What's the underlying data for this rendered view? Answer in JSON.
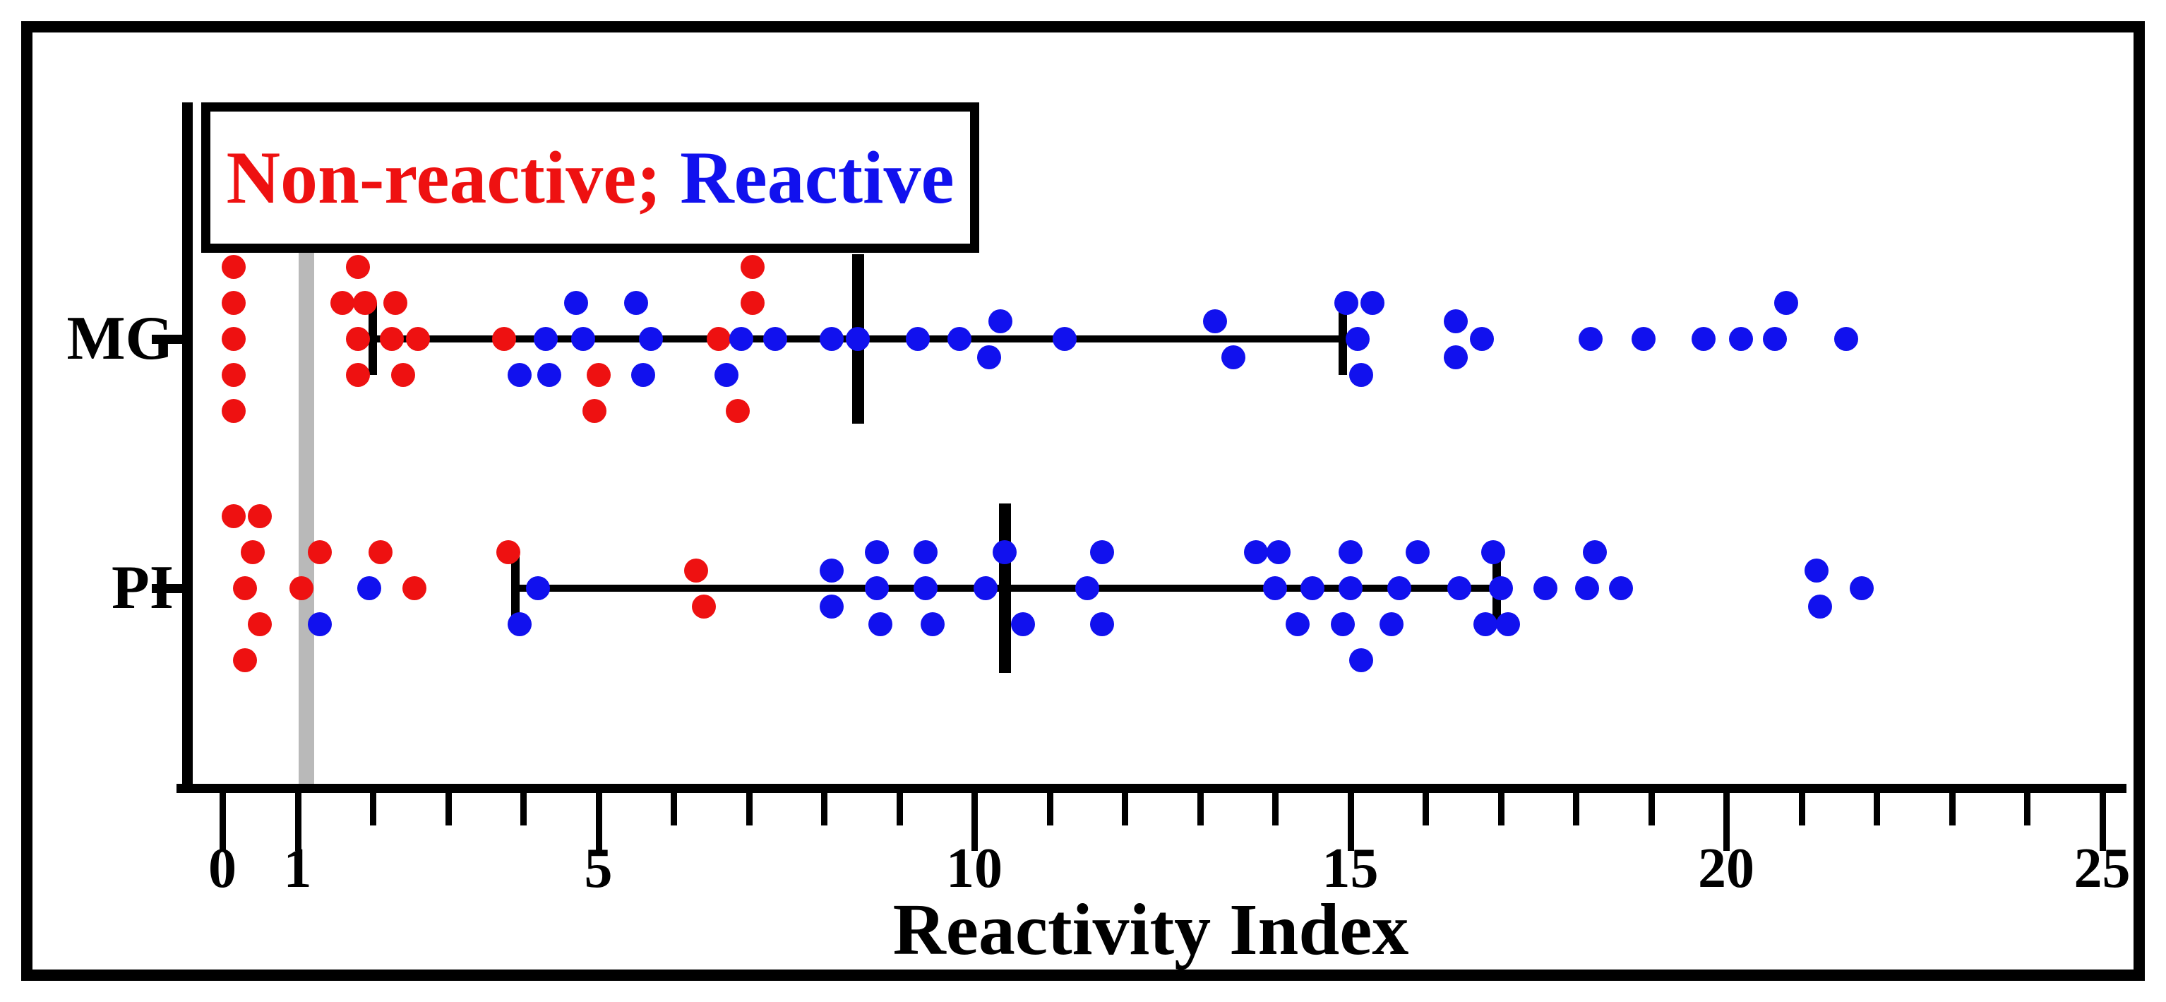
{
  "chart_data": {
    "type": "scatter",
    "variant": "categorical-dot-plot-beeswarm",
    "xlabel": "Reactivity Index",
    "categories": [
      "MG",
      "PI"
    ],
    "xlim": [
      0,
      25
    ],
    "x_ticks_labeled": [
      0,
      1,
      5,
      10,
      15,
      20,
      25
    ],
    "x_minor_tick_step": 1,
    "cutoff_line_x": 1,
    "grid": false,
    "legend": {
      "position": "top-left",
      "items": [
        {
          "label": "Non-reactive;",
          "color": "#ee1111"
        },
        {
          "label": "Reactive",
          "color": "#1111ee"
        }
      ]
    },
    "colors": {
      "non_reactive": "#ee1111",
      "reactive": "#1111ee",
      "cutoff_line": "#b9b9b9",
      "axis": "#000000"
    },
    "summary_stats": [
      {
        "category": "MG",
        "whisker_min": 2.0,
        "median": 8.45,
        "whisker_max": 14.9
      },
      {
        "category": "PI",
        "whisker_min": 3.9,
        "median": 10.4,
        "whisker_max": 16.95
      }
    ],
    "series": [
      {
        "category": "MG",
        "name": "Non-reactive",
        "color": "#ee1111",
        "points": [
          [
            0.15,
            -2
          ],
          [
            0.15,
            -1
          ],
          [
            0.15,
            0
          ],
          [
            0.15,
            1
          ],
          [
            0.15,
            2
          ],
          [
            1.8,
            -2
          ],
          [
            1.6,
            -1
          ],
          [
            1.9,
            -1
          ],
          [
            2.3,
            -1
          ],
          [
            1.8,
            0
          ],
          [
            2.25,
            0
          ],
          [
            2.6,
            0
          ],
          [
            1.8,
            1
          ],
          [
            2.4,
            1
          ],
          [
            3.75,
            0
          ],
          [
            5.0,
            1
          ],
          [
            4.95,
            2
          ],
          [
            6.6,
            0
          ],
          [
            7.05,
            -2
          ],
          [
            7.05,
            -1
          ],
          [
            6.85,
            2
          ]
        ]
      },
      {
        "category": "MG",
        "name": "Reactive",
        "color": "#1111ee",
        "points": [
          [
            4.3,
            0
          ],
          [
            3.95,
            1
          ],
          [
            4.35,
            1
          ],
          [
            4.7,
            -1
          ],
          [
            5.5,
            -1
          ],
          [
            4.8,
            0
          ],
          [
            5.7,
            0
          ],
          [
            5.6,
            1
          ],
          [
            6.7,
            1
          ],
          [
            6.9,
            0
          ],
          [
            7.35,
            0
          ],
          [
            8.1,
            0
          ],
          [
            8.45,
            0
          ],
          [
            9.25,
            0
          ],
          [
            9.8,
            0
          ],
          [
            10.35,
            -0.5
          ],
          [
            10.2,
            0.5
          ],
          [
            11.2,
            0
          ],
          [
            13.2,
            -0.5
          ],
          [
            13.45,
            0.5
          ],
          [
            14.95,
            -1
          ],
          [
            15.3,
            -1
          ],
          [
            15.1,
            0
          ],
          [
            15.15,
            1
          ],
          [
            16.4,
            -0.5
          ],
          [
            16.75,
            0
          ],
          [
            16.4,
            0.5
          ],
          [
            18.2,
            0
          ],
          [
            18.9,
            0
          ],
          [
            19.7,
            0
          ],
          [
            20.2,
            0
          ],
          [
            20.65,
            0
          ],
          [
            20.8,
            -1
          ],
          [
            21.6,
            0
          ]
        ]
      },
      {
        "category": "PI",
        "name": "Non-reactive",
        "color": "#ee1111",
        "points": [
          [
            0.15,
            -2
          ],
          [
            0.5,
            -2
          ],
          [
            0.4,
            -1
          ],
          [
            0.3,
            0
          ],
          [
            0.5,
            1
          ],
          [
            0.3,
            2
          ],
          [
            1.3,
            -1
          ],
          [
            1.05,
            0
          ],
          [
            2.1,
            -1
          ],
          [
            2.55,
            0
          ],
          [
            3.8,
            -1
          ],
          [
            6.3,
            -0.5
          ],
          [
            6.4,
            0.5
          ]
        ]
      },
      {
        "category": "PI",
        "name": "Reactive",
        "color": "#1111ee",
        "points": [
          [
            1.3,
            1
          ],
          [
            1.95,
            0
          ],
          [
            3.95,
            1
          ],
          [
            4.2,
            0
          ],
          [
            8.1,
            -0.5
          ],
          [
            8.1,
            0.5
          ],
          [
            8.7,
            -1
          ],
          [
            8.7,
            0
          ],
          [
            8.75,
            1
          ],
          [
            9.35,
            -1
          ],
          [
            9.35,
            0
          ],
          [
            9.45,
            1
          ],
          [
            10.15,
            0
          ],
          [
            10.4,
            -1
          ],
          [
            10.65,
            1
          ],
          [
            11.5,
            0
          ],
          [
            11.7,
            -1
          ],
          [
            11.7,
            1
          ],
          [
            13.75,
            -1
          ],
          [
            14.05,
            -1
          ],
          [
            14.0,
            0
          ],
          [
            14.3,
            1
          ],
          [
            14.5,
            0
          ],
          [
            15.0,
            -1
          ],
          [
            15.0,
            0
          ],
          [
            14.9,
            1
          ],
          [
            15.15,
            2
          ],
          [
            15.65,
            0
          ],
          [
            15.9,
            -1
          ],
          [
            15.55,
            1
          ],
          [
            16.45,
            0
          ],
          [
            16.9,
            -1
          ],
          [
            17.0,
            0
          ],
          [
            16.8,
            1
          ],
          [
            17.1,
            1
          ],
          [
            17.6,
            0
          ],
          [
            18.15,
            0
          ],
          [
            18.25,
            -1
          ],
          [
            18.6,
            0
          ],
          [
            21.2,
            -0.5
          ],
          [
            21.25,
            0.5
          ],
          [
            21.8,
            0
          ]
        ]
      }
    ]
  }
}
